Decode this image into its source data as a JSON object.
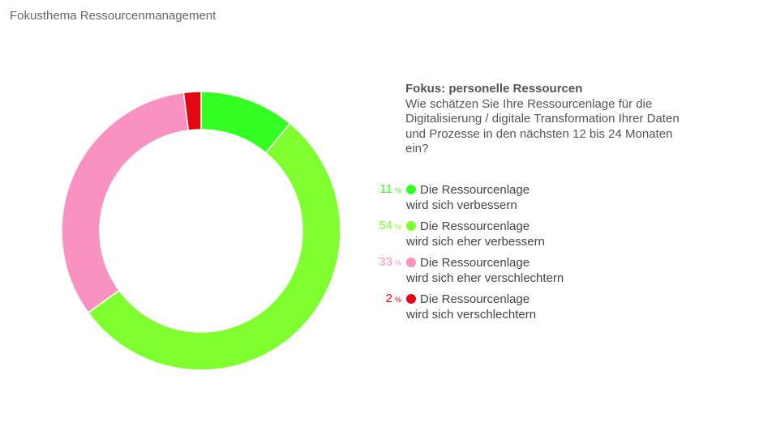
{
  "header": {
    "title": "Fokusthema Ressourcenmanagement"
  },
  "chart_data": {
    "type": "pie",
    "donut": true,
    "title": "Fokus: personelle Ressourcen",
    "subtitle": "Wie schätzen Sie Ihre Ressourcenlage für die Digitalisierung / digitale Transformation Ihrer Daten und Prozesse in den nächsten 12 bis 24 Monaten ein?",
    "unit": "%",
    "legend_placement": "right",
    "slices": [
      {
        "value": 11,
        "label": "Die Ressourcenlage wird sich verbessern",
        "color": "#33ff22"
      },
      {
        "value": 54,
        "label": "Die Ressourcenlage wird sich eher verbessern",
        "color": "#80ff30"
      },
      {
        "value": 33,
        "label": "Die Ressourcenlage wird sich eher verschlechtern",
        "color": "#f992c1"
      },
      {
        "value": 2,
        "label": "Die Ressourcenlage wird sich verschlechtern",
        "color": "#e30613"
      }
    ]
  }
}
